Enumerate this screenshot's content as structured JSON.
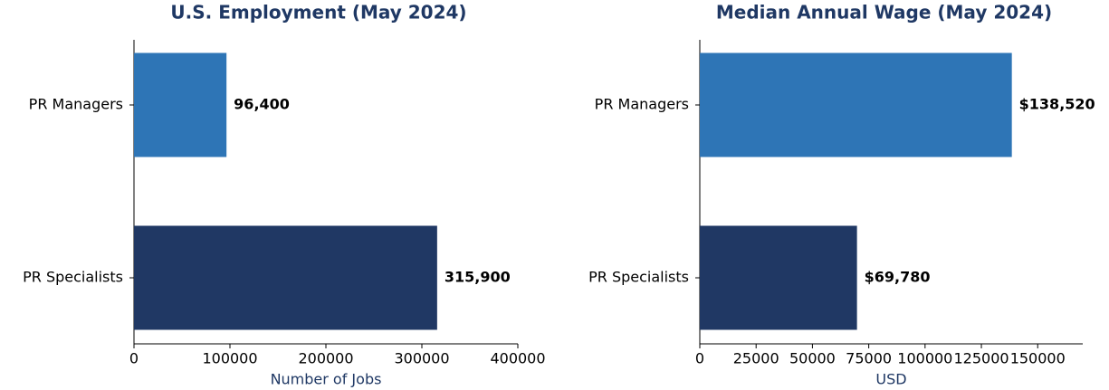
{
  "chart_data": [
    {
      "type": "barh",
      "title": "U.S. Employment (May 2024)",
      "xlabel": "Number of Jobs",
      "categories": [
        "PR Managers",
        "PR Specialists"
      ],
      "values": [
        96400,
        315900
      ],
      "value_labels": [
        "96,400",
        "315,900"
      ],
      "colors": [
        "#2e75b6",
        "#203864"
      ],
      "xlim": [
        0,
        400000
      ],
      "xticks": [
        0,
        100000,
        200000,
        300000,
        400000
      ]
    },
    {
      "type": "barh",
      "title": "Median Annual Wage (May 2024)",
      "xlabel": "USD",
      "categories": [
        "PR Managers",
        "PR Specialists"
      ],
      "values": [
        138520,
        69780
      ],
      "value_labels": [
        "$138,520",
        "$69,780"
      ],
      "colors": [
        "#2e75b6",
        "#203864"
      ],
      "xlim": [
        0,
        170000
      ],
      "xticks": [
        0,
        25000,
        50000,
        75000,
        100000,
        125000,
        150000
      ]
    }
  ]
}
